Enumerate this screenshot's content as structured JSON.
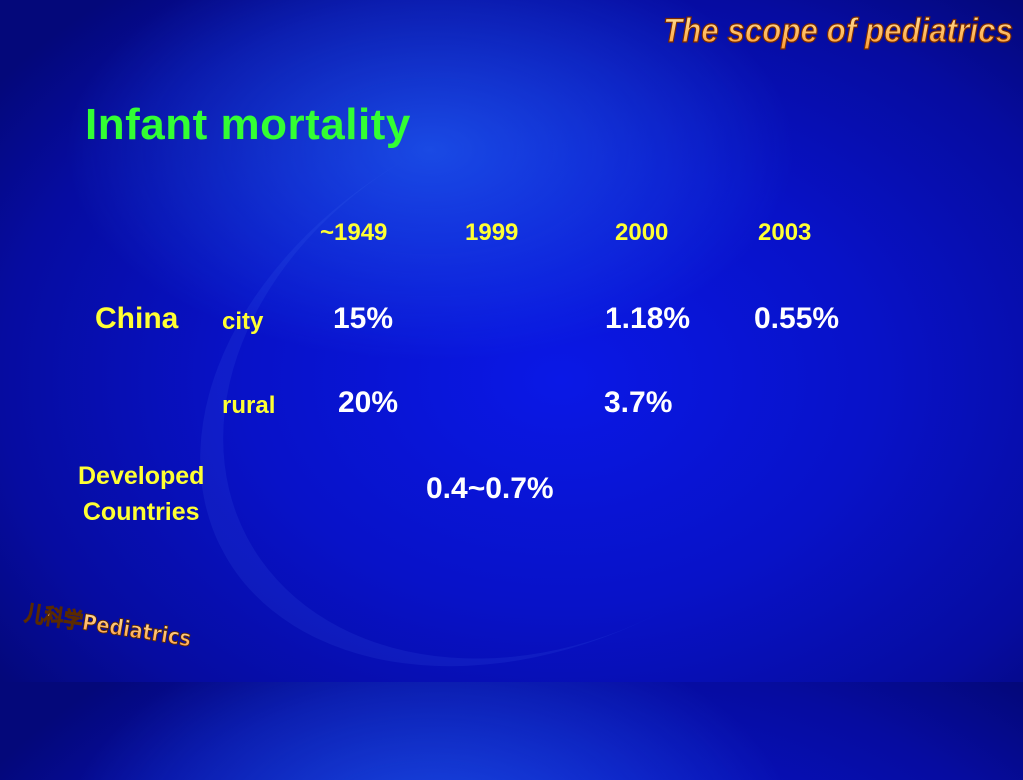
{
  "header": {
    "corner_title": "The scope of pediatrics"
  },
  "slide": {
    "title": "Infant mortality"
  },
  "table": {
    "years": [
      "~1949",
      "1999",
      "2000",
      "2003"
    ],
    "china_label": "China",
    "rows": [
      {
        "label": "city",
        "values": [
          "15%",
          "",
          "1.18%",
          "0.55%"
        ]
      },
      {
        "label": "rural",
        "values": [
          "20%",
          "",
          "3.7%",
          ""
        ]
      }
    ],
    "developed_label_line1": "Developed",
    "developed_label_line2": "Countries",
    "developed_value": "0.4~0.7%"
  },
  "footer": {
    "logo_text": "儿科学Pediatrics"
  },
  "colors": {
    "title_green": "#33ff33",
    "label_yellow": "#ffff33",
    "value_white": "#ffffff",
    "corner_orange": "#ffb347"
  }
}
